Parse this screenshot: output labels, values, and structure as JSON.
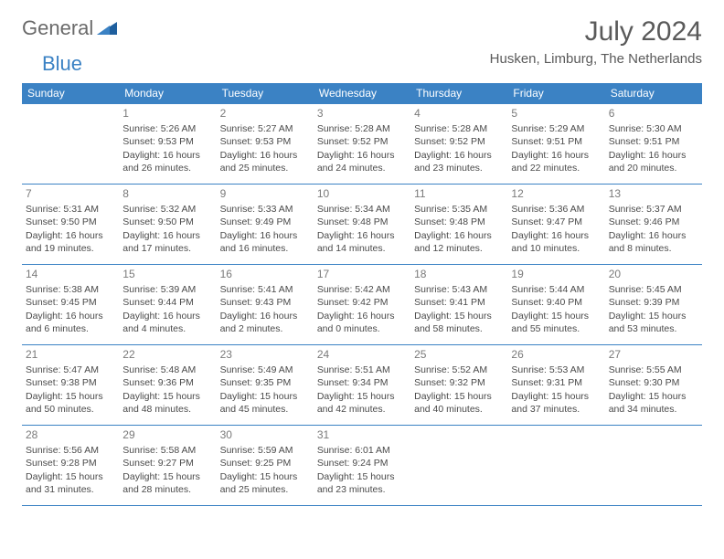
{
  "logo": {
    "word1": "General",
    "word2": "Blue"
  },
  "title": "July 2024",
  "location": "Husken, Limburg, The Netherlands",
  "colors": {
    "header_bg": "#3b82c4",
    "header_text": "#ffffff",
    "border": "#3b82c4",
    "body_text": "#4a4a4a",
    "daynum": "#7a7a7a",
    "logo_gray": "#6a6a6a",
    "logo_blue": "#3b82c4"
  },
  "weekdays": [
    "Sunday",
    "Monday",
    "Tuesday",
    "Wednesday",
    "Thursday",
    "Friday",
    "Saturday"
  ],
  "weeks": [
    [
      null,
      {
        "n": "1",
        "sr": "Sunrise: 5:26 AM",
        "ss": "Sunset: 9:53 PM",
        "d1": "Daylight: 16 hours",
        "d2": "and 26 minutes."
      },
      {
        "n": "2",
        "sr": "Sunrise: 5:27 AM",
        "ss": "Sunset: 9:53 PM",
        "d1": "Daylight: 16 hours",
        "d2": "and 25 minutes."
      },
      {
        "n": "3",
        "sr": "Sunrise: 5:28 AM",
        "ss": "Sunset: 9:52 PM",
        "d1": "Daylight: 16 hours",
        "d2": "and 24 minutes."
      },
      {
        "n": "4",
        "sr": "Sunrise: 5:28 AM",
        "ss": "Sunset: 9:52 PM",
        "d1": "Daylight: 16 hours",
        "d2": "and 23 minutes."
      },
      {
        "n": "5",
        "sr": "Sunrise: 5:29 AM",
        "ss": "Sunset: 9:51 PM",
        "d1": "Daylight: 16 hours",
        "d2": "and 22 minutes."
      },
      {
        "n": "6",
        "sr": "Sunrise: 5:30 AM",
        "ss": "Sunset: 9:51 PM",
        "d1": "Daylight: 16 hours",
        "d2": "and 20 minutes."
      }
    ],
    [
      {
        "n": "7",
        "sr": "Sunrise: 5:31 AM",
        "ss": "Sunset: 9:50 PM",
        "d1": "Daylight: 16 hours",
        "d2": "and 19 minutes."
      },
      {
        "n": "8",
        "sr": "Sunrise: 5:32 AM",
        "ss": "Sunset: 9:50 PM",
        "d1": "Daylight: 16 hours",
        "d2": "and 17 minutes."
      },
      {
        "n": "9",
        "sr": "Sunrise: 5:33 AM",
        "ss": "Sunset: 9:49 PM",
        "d1": "Daylight: 16 hours",
        "d2": "and 16 minutes."
      },
      {
        "n": "10",
        "sr": "Sunrise: 5:34 AM",
        "ss": "Sunset: 9:48 PM",
        "d1": "Daylight: 16 hours",
        "d2": "and 14 minutes."
      },
      {
        "n": "11",
        "sr": "Sunrise: 5:35 AM",
        "ss": "Sunset: 9:48 PM",
        "d1": "Daylight: 16 hours",
        "d2": "and 12 minutes."
      },
      {
        "n": "12",
        "sr": "Sunrise: 5:36 AM",
        "ss": "Sunset: 9:47 PM",
        "d1": "Daylight: 16 hours",
        "d2": "and 10 minutes."
      },
      {
        "n": "13",
        "sr": "Sunrise: 5:37 AM",
        "ss": "Sunset: 9:46 PM",
        "d1": "Daylight: 16 hours",
        "d2": "and 8 minutes."
      }
    ],
    [
      {
        "n": "14",
        "sr": "Sunrise: 5:38 AM",
        "ss": "Sunset: 9:45 PM",
        "d1": "Daylight: 16 hours",
        "d2": "and 6 minutes."
      },
      {
        "n": "15",
        "sr": "Sunrise: 5:39 AM",
        "ss": "Sunset: 9:44 PM",
        "d1": "Daylight: 16 hours",
        "d2": "and 4 minutes."
      },
      {
        "n": "16",
        "sr": "Sunrise: 5:41 AM",
        "ss": "Sunset: 9:43 PM",
        "d1": "Daylight: 16 hours",
        "d2": "and 2 minutes."
      },
      {
        "n": "17",
        "sr": "Sunrise: 5:42 AM",
        "ss": "Sunset: 9:42 PM",
        "d1": "Daylight: 16 hours",
        "d2": "and 0 minutes."
      },
      {
        "n": "18",
        "sr": "Sunrise: 5:43 AM",
        "ss": "Sunset: 9:41 PM",
        "d1": "Daylight: 15 hours",
        "d2": "and 58 minutes."
      },
      {
        "n": "19",
        "sr": "Sunrise: 5:44 AM",
        "ss": "Sunset: 9:40 PM",
        "d1": "Daylight: 15 hours",
        "d2": "and 55 minutes."
      },
      {
        "n": "20",
        "sr": "Sunrise: 5:45 AM",
        "ss": "Sunset: 9:39 PM",
        "d1": "Daylight: 15 hours",
        "d2": "and 53 minutes."
      }
    ],
    [
      {
        "n": "21",
        "sr": "Sunrise: 5:47 AM",
        "ss": "Sunset: 9:38 PM",
        "d1": "Daylight: 15 hours",
        "d2": "and 50 minutes."
      },
      {
        "n": "22",
        "sr": "Sunrise: 5:48 AM",
        "ss": "Sunset: 9:36 PM",
        "d1": "Daylight: 15 hours",
        "d2": "and 48 minutes."
      },
      {
        "n": "23",
        "sr": "Sunrise: 5:49 AM",
        "ss": "Sunset: 9:35 PM",
        "d1": "Daylight: 15 hours",
        "d2": "and 45 minutes."
      },
      {
        "n": "24",
        "sr": "Sunrise: 5:51 AM",
        "ss": "Sunset: 9:34 PM",
        "d1": "Daylight: 15 hours",
        "d2": "and 42 minutes."
      },
      {
        "n": "25",
        "sr": "Sunrise: 5:52 AM",
        "ss": "Sunset: 9:32 PM",
        "d1": "Daylight: 15 hours",
        "d2": "and 40 minutes."
      },
      {
        "n": "26",
        "sr": "Sunrise: 5:53 AM",
        "ss": "Sunset: 9:31 PM",
        "d1": "Daylight: 15 hours",
        "d2": "and 37 minutes."
      },
      {
        "n": "27",
        "sr": "Sunrise: 5:55 AM",
        "ss": "Sunset: 9:30 PM",
        "d1": "Daylight: 15 hours",
        "d2": "and 34 minutes."
      }
    ],
    [
      {
        "n": "28",
        "sr": "Sunrise: 5:56 AM",
        "ss": "Sunset: 9:28 PM",
        "d1": "Daylight: 15 hours",
        "d2": "and 31 minutes."
      },
      {
        "n": "29",
        "sr": "Sunrise: 5:58 AM",
        "ss": "Sunset: 9:27 PM",
        "d1": "Daylight: 15 hours",
        "d2": "and 28 minutes."
      },
      {
        "n": "30",
        "sr": "Sunrise: 5:59 AM",
        "ss": "Sunset: 9:25 PM",
        "d1": "Daylight: 15 hours",
        "d2": "and 25 minutes."
      },
      {
        "n": "31",
        "sr": "Sunrise: 6:01 AM",
        "ss": "Sunset: 9:24 PM",
        "d1": "Daylight: 15 hours",
        "d2": "and 23 minutes."
      },
      null,
      null,
      null
    ]
  ]
}
